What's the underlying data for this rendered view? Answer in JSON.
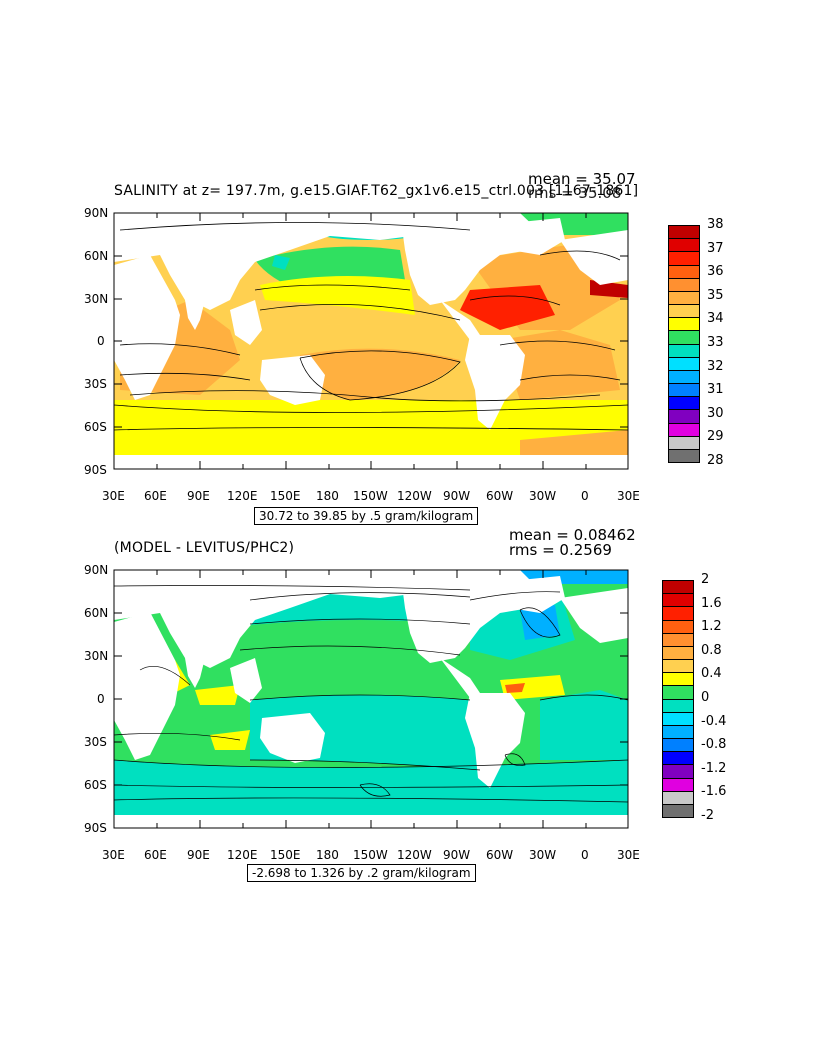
{
  "colors": {
    "salinity_scale": [
      "#707070",
      "#c8c8c8",
      "#e000e0",
      "#8000c0",
      "#0000ff",
      "#0080ff",
      "#00b0ff",
      "#00e0ff",
      "#00e0c0",
      "#30e060",
      "#ffff00",
      "#ffd050",
      "#ffb040",
      "#ff9030",
      "#ff6010",
      "#ff2000",
      "#e00000",
      "#c00000"
    ],
    "diff_scale": [
      "#707070",
      "#c8c8c8",
      "#e000e0",
      "#8000c0",
      "#0000ff",
      "#0080ff",
      "#00b0ff",
      "#00e0ff",
      "#00e0c0",
      "#30e060",
      "#ffff00",
      "#ffd050",
      "#ffb040",
      "#ff9030",
      "#ff6010",
      "#ff2000",
      "#e00000",
      "#c00000"
    ]
  },
  "panel1": {
    "title": "SALINITY at z=  197.7m, g.e15.GIAF.T62_gx1v6.e15_ctrl.003  [1167-1861]",
    "mean_text": "mean = 35.07",
    "rms_text": "rms = 35.08",
    "range_text": "30.72 to 39.85 by .5 gram/kilogram",
    "colorbar_labels": [
      "38",
      "37",
      "36",
      "35",
      "34",
      "33",
      "32",
      "31",
      "30",
      "29",
      "28"
    ]
  },
  "panel2": {
    "title": "(MODEL - LEVITUS/PHC2)",
    "mean_text": "mean = 0.08462",
    "rms_text": "rms = 0.2569",
    "range_text": "-2.698 to 1.326 by .2 gram/kilogram",
    "colorbar_labels": [
      "2",
      "1.6",
      "1.2",
      "0.8",
      "0.4",
      "0",
      "-0.4",
      "-0.8",
      "-1.2",
      "-1.6",
      "-2"
    ]
  },
  "axes": {
    "lat_labels": [
      "90N",
      "60N",
      "30N",
      "0",
      "30S",
      "60S",
      "90S"
    ],
    "lon_labels": [
      "30E",
      "60E",
      "90E",
      "120E",
      "150E",
      "180",
      "150W",
      "120W",
      "90W",
      "60W",
      "30W",
      "0",
      "30E"
    ]
  }
}
